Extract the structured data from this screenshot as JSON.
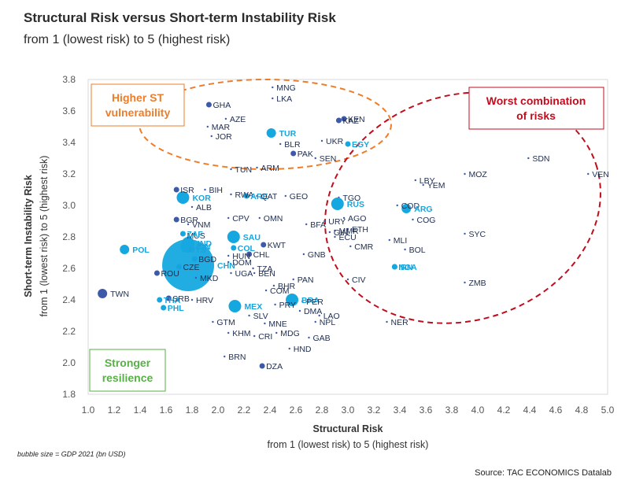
{
  "title": "Structural Risk versus Short-term Instability Risk",
  "subtitle": "from 1 (lowest risk) to 5 (highest risk)",
  "footnote": "bubble size = GDP 2021 (bn USD)",
  "source": "Source: TAC ECONOMICS Datalab",
  "colors": {
    "dark": "#3d5aa9",
    "light": "#15a8e0",
    "orange": "#ee7d2a",
    "red": "#c00d1e",
    "green": "#57b146"
  },
  "chart_data": {
    "type": "scatter",
    "xlabel": "Structural Risk",
    "xlabel2": "from 1 (lowest risk) to 5 (highest risk)",
    "ylabel": "Short-term Instability Risk",
    "ylabel2": "from 1 (lowest risk) to 5 (highest risk)",
    "xlim": [
      1.0,
      5.0
    ],
    "ylim": [
      1.8,
      3.8
    ],
    "xticks": [
      "1.0",
      "1.2",
      "1.4",
      "1.6",
      "1.8",
      "2.0",
      "2.2",
      "2.4",
      "2.6",
      "2.8",
      "3.0",
      "3.2",
      "3.4",
      "3.6",
      "3.8",
      "4.0",
      "4.2",
      "4.4",
      "4.6",
      "4.8",
      "5.0"
    ],
    "yticks": [
      "1.8",
      "2.0",
      "2.2",
      "2.4",
      "2.6",
      "2.8",
      "3.0",
      "3.2",
      "3.4",
      "3.6",
      "3.8"
    ],
    "annotations": [
      {
        "text": "Higher ST vulnerability",
        "lines": [
          "Higher ST",
          "vulnerability"
        ],
        "color": "orange"
      },
      {
        "text": "Worst combination of risks",
        "lines": [
          "Worst combination",
          "of risks"
        ],
        "color": "red"
      },
      {
        "text": "Stronger resilience",
        "lines": [
          "Stronger",
          "resilience"
        ],
        "color": "green"
      }
    ],
    "points": [
      {
        "c": "MNG",
        "x": 2.42,
        "y": 3.75,
        "s": 0,
        "g": 0
      },
      {
        "c": "LKA",
        "x": 2.42,
        "y": 3.68,
        "s": 0,
        "g": 0
      },
      {
        "c": "GHA",
        "x": 1.93,
        "y": 3.64,
        "s": 1,
        "g": 0
      },
      {
        "c": "AZE",
        "x": 2.06,
        "y": 3.55,
        "s": 0,
        "g": 0
      },
      {
        "c": "MAR",
        "x": 1.92,
        "y": 3.5,
        "s": 0,
        "g": 0
      },
      {
        "c": "JOR",
        "x": 1.95,
        "y": 3.44,
        "s": 0,
        "g": 0
      },
      {
        "c": "KAZ",
        "x": 2.93,
        "y": 3.54,
        "s": 1,
        "g": 0
      },
      {
        "c": "KEN",
        "x": 2.97,
        "y": 3.55,
        "s": 1,
        "g": 0
      },
      {
        "c": "UKR",
        "x": 2.8,
        "y": 3.41,
        "s": 0,
        "g": 0
      },
      {
        "c": "TUR",
        "x": 2.41,
        "y": 3.46,
        "s": 2,
        "g": 1
      },
      {
        "c": "EGY",
        "x": 3.0,
        "y": 3.39,
        "s": 1,
        "g": 1
      },
      {
        "c": "BLR",
        "x": 2.48,
        "y": 3.39,
        "s": 0,
        "g": 0
      },
      {
        "c": "PAK",
        "x": 2.58,
        "y": 3.33,
        "s": 1,
        "g": 0
      },
      {
        "c": "SEN",
        "x": 2.75,
        "y": 3.3,
        "s": 0,
        "g": 0
      },
      {
        "c": "ARM",
        "x": 2.3,
        "y": 3.24,
        "s": 0,
        "g": 0
      },
      {
        "c": "TUN",
        "x": 2.1,
        "y": 3.23,
        "s": 0,
        "g": 0
      },
      {
        "c": "SDN",
        "x": 4.39,
        "y": 3.3,
        "s": 0,
        "g": 0
      },
      {
        "c": "MOZ",
        "x": 3.9,
        "y": 3.2,
        "s": 0,
        "g": 0
      },
      {
        "c": "VEN",
        "x": 4.85,
        "y": 3.2,
        "s": 0,
        "g": 0
      },
      {
        "c": "LBY",
        "x": 3.52,
        "y": 3.16,
        "s": 0,
        "g": 0
      },
      {
        "c": "YEM",
        "x": 3.58,
        "y": 3.13,
        "s": 0,
        "g": 0
      },
      {
        "c": "ISR",
        "x": 1.68,
        "y": 3.1,
        "s": 1,
        "g": 0
      },
      {
        "c": "BIH",
        "x": 1.9,
        "y": 3.1,
        "s": 0,
        "g": 0
      },
      {
        "c": "RWA",
        "x": 2.1,
        "y": 3.07,
        "s": 0,
        "g": 0
      },
      {
        "c": "ARE",
        "x": 2.22,
        "y": 3.06,
        "s": 1,
        "g": 1
      },
      {
        "c": "QAT",
        "x": 2.3,
        "y": 3.06,
        "s": 0,
        "g": 0
      },
      {
        "c": "GEO",
        "x": 2.52,
        "y": 3.06,
        "s": 0,
        "g": 0
      },
      {
        "c": "TGO",
        "x": 2.93,
        "y": 3.05,
        "s": 0,
        "g": 0
      },
      {
        "c": "KOR",
        "x": 1.73,
        "y": 3.05,
        "s": 3,
        "g": 1
      },
      {
        "c": "ALB",
        "x": 1.8,
        "y": 2.99,
        "s": 0,
        "g": 0
      },
      {
        "c": "RUS",
        "x": 2.92,
        "y": 3.01,
        "s": 3,
        "g": 1
      },
      {
        "c": "COD",
        "x": 3.38,
        "y": 3.0,
        "s": 0,
        "g": 0
      },
      {
        "c": "ARG",
        "x": 3.45,
        "y": 2.98,
        "s": 2,
        "g": 1
      },
      {
        "c": "AGO",
        "x": 2.97,
        "y": 2.92,
        "s": 0,
        "g": 0
      },
      {
        "c": "COG",
        "x": 3.5,
        "y": 2.91,
        "s": 0,
        "g": 0
      },
      {
        "c": "BGR",
        "x": 1.68,
        "y": 2.91,
        "s": 1,
        "g": 0
      },
      {
        "c": "VNM",
        "x": 1.77,
        "y": 2.88,
        "s": 0,
        "g": 0
      },
      {
        "c": "CPV",
        "x": 2.08,
        "y": 2.92,
        "s": 0,
        "g": 0
      },
      {
        "c": "OMN",
        "x": 2.32,
        "y": 2.92,
        "s": 0,
        "g": 0
      },
      {
        "c": "BFA",
        "x": 2.68,
        "y": 2.88,
        "s": 0,
        "g": 0
      },
      {
        "c": "URY",
        "x": 2.82,
        "y": 2.9,
        "s": 0,
        "g": 0
      },
      {
        "c": "GIN",
        "x": 2.86,
        "y": 2.83,
        "s": 0,
        "g": 0
      },
      {
        "c": "MMR",
        "x": 2.9,
        "y": 2.84,
        "s": 0,
        "g": 0
      },
      {
        "c": "ETH",
        "x": 3.0,
        "y": 2.85,
        "s": 0,
        "g": 0
      },
      {
        "c": "SYC",
        "x": 3.9,
        "y": 2.82,
        "s": 0,
        "g": 0
      },
      {
        "c": "MUS",
        "x": 1.73,
        "y": 2.81,
        "s": 0,
        "g": 0
      },
      {
        "c": "ZAF",
        "x": 1.73,
        "y": 2.82,
        "s": 1,
        "g": 1
      },
      {
        "c": "SAU",
        "x": 2.12,
        "y": 2.8,
        "s": 3,
        "g": 1
      },
      {
        "c": "IND",
        "x": 1.77,
        "y": 2.76,
        "s": 3,
        "g": 1
      },
      {
        "c": "ECU",
        "x": 2.9,
        "y": 2.8,
        "s": 0,
        "g": 0
      },
      {
        "c": "IDN",
        "x": 1.76,
        "y": 2.74,
        "s": 3,
        "g": 1
      },
      {
        "c": "MYS",
        "x": 1.74,
        "y": 2.72,
        "s": 1,
        "g": 1
      },
      {
        "c": "KWT",
        "x": 2.35,
        "y": 2.75,
        "s": 1,
        "g": 0
      },
      {
        "c": "COL",
        "x": 2.12,
        "y": 2.73,
        "s": 1,
        "g": 1
      },
      {
        "c": "MLI",
        "x": 3.32,
        "y": 2.78,
        "s": 0,
        "g": 0
      },
      {
        "c": "CMR",
        "x": 3.02,
        "y": 2.74,
        "s": 0,
        "g": 0
      },
      {
        "c": "BOL",
        "x": 3.44,
        "y": 2.72,
        "s": 0,
        "g": 0
      },
      {
        "c": "POL",
        "x": 1.28,
        "y": 2.72,
        "s": 2,
        "g": 1
      },
      {
        "c": "CHL",
        "x": 2.24,
        "y": 2.69,
        "s": 1,
        "g": 0
      },
      {
        "c": "HUN",
        "x": 2.08,
        "y": 2.68,
        "s": 0,
        "g": 0
      },
      {
        "c": "GNB",
        "x": 2.66,
        "y": 2.69,
        "s": 0,
        "g": 0
      },
      {
        "c": "BGD",
        "x": 1.82,
        "y": 2.66,
        "s": 1,
        "g": 0
      },
      {
        "c": "DOM",
        "x": 2.08,
        "y": 2.64,
        "s": 0,
        "g": 0
      },
      {
        "c": "TZA",
        "x": 2.27,
        "y": 2.6,
        "s": 0,
        "g": 0
      },
      {
        "c": "CZE",
        "x": 1.7,
        "y": 2.61,
        "s": 1,
        "g": 0
      },
      {
        "c": "CHN",
        "x": 1.77,
        "y": 2.62,
        "s": 4,
        "g": 1
      },
      {
        "c": "NGA",
        "x": 3.36,
        "y": 2.61,
        "s": 1,
        "g": 1
      },
      {
        "c": "IRN",
        "x": 3.36,
        "y": 2.61,
        "s": 1,
        "g": 1
      },
      {
        "c": "ROU",
        "x": 1.53,
        "y": 2.57,
        "s": 1,
        "g": 0
      },
      {
        "c": "UGA",
        "x": 2.1,
        "y": 2.57,
        "s": 0,
        "g": 0
      },
      {
        "c": "BEN",
        "x": 2.28,
        "y": 2.57,
        "s": 0,
        "g": 0
      },
      {
        "c": "MKD",
        "x": 1.83,
        "y": 2.54,
        "s": 0,
        "g": 0
      },
      {
        "c": "PAN",
        "x": 2.58,
        "y": 2.53,
        "s": 0,
        "g": 0
      },
      {
        "c": "CIV",
        "x": 3.0,
        "y": 2.53,
        "s": 0,
        "g": 0
      },
      {
        "c": "ZMB",
        "x": 3.9,
        "y": 2.51,
        "s": 0,
        "g": 0
      },
      {
        "c": "BHR",
        "x": 2.43,
        "y": 2.49,
        "s": 0,
        "g": 0
      },
      {
        "c": "COM",
        "x": 2.37,
        "y": 2.46,
        "s": 0,
        "g": 0
      },
      {
        "c": "TWN",
        "x": 1.11,
        "y": 2.44,
        "s": 2,
        "g": 0
      },
      {
        "c": "BRA",
        "x": 2.57,
        "y": 2.4,
        "s": 3,
        "g": 1
      },
      {
        "c": "THA",
        "x": 1.55,
        "y": 2.4,
        "s": 1,
        "g": 1
      },
      {
        "c": "SRB",
        "x": 1.62,
        "y": 2.41,
        "s": 1,
        "g": 0
      },
      {
        "c": "HRV",
        "x": 1.8,
        "y": 2.4,
        "s": 0,
        "g": 0
      },
      {
        "c": "PER",
        "x": 2.65,
        "y": 2.39,
        "s": 0,
        "g": 0
      },
      {
        "c": "MEX",
        "x": 2.13,
        "y": 2.36,
        "s": 3,
        "g": 1
      },
      {
        "c": "PRY",
        "x": 2.44,
        "y": 2.37,
        "s": 0,
        "g": 0
      },
      {
        "c": "PHL",
        "x": 1.58,
        "y": 2.35,
        "s": 1,
        "g": 1
      },
      {
        "c": "DMA",
        "x": 2.63,
        "y": 2.33,
        "s": 0,
        "g": 0
      },
      {
        "c": "LAO",
        "x": 2.78,
        "y": 2.3,
        "s": 0,
        "g": 0
      },
      {
        "c": "SLV",
        "x": 2.24,
        "y": 2.3,
        "s": 0,
        "g": 0
      },
      {
        "c": "NER",
        "x": 3.3,
        "y": 2.26,
        "s": 0,
        "g": 0
      },
      {
        "c": "GTM",
        "x": 1.96,
        "y": 2.26,
        "s": 0,
        "g": 0
      },
      {
        "c": "MNE",
        "x": 2.36,
        "y": 2.25,
        "s": 0,
        "g": 0
      },
      {
        "c": "NPL",
        "x": 2.75,
        "y": 2.26,
        "s": 0,
        "g": 0
      },
      {
        "c": "KHM",
        "x": 2.08,
        "y": 2.19,
        "s": 0,
        "g": 0
      },
      {
        "c": "CRI",
        "x": 2.28,
        "y": 2.17,
        "s": 0,
        "g": 0
      },
      {
        "c": "MDG",
        "x": 2.45,
        "y": 2.19,
        "s": 0,
        "g": 0
      },
      {
        "c": "GAB",
        "x": 2.7,
        "y": 2.16,
        "s": 0,
        "g": 0
      },
      {
        "c": "HND",
        "x": 2.55,
        "y": 2.09,
        "s": 0,
        "g": 0
      },
      {
        "c": "BRN",
        "x": 2.05,
        "y": 2.04,
        "s": 0,
        "g": 0
      },
      {
        "c": "DZA",
        "x": 2.34,
        "y": 1.98,
        "s": 1,
        "g": 0
      }
    ]
  }
}
